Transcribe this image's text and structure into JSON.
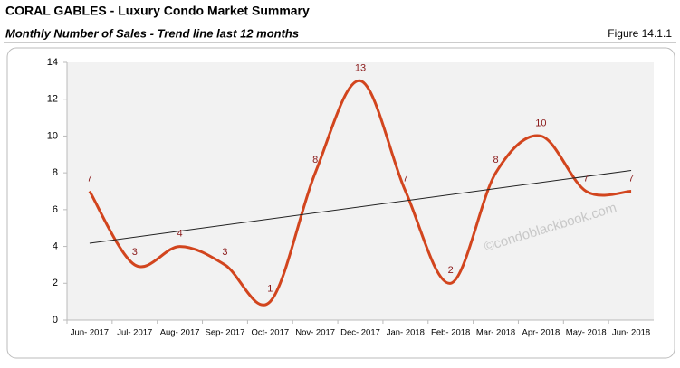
{
  "header": {
    "title": "CORAL GABLES - Luxury Condo Market Summary",
    "subtitle": "Monthly Number of Sales - Trend line last 12 months",
    "figure": "Figure 14.1.1"
  },
  "chart_data": {
    "type": "line",
    "categories": [
      "Jun- 2017",
      "Jul- 2017",
      "Aug- 2017",
      "Sep- 2017",
      "Oct- 2017",
      "Nov- 2017",
      "Dec- 2017",
      "Jan- 2018",
      "Feb- 2018",
      "Mar- 2018",
      "Apr- 2018",
      "May- 2018",
      "Jun- 2018"
    ],
    "series": [
      {
        "name": "Number of Sales",
        "color": "#d2451e",
        "values": [
          7,
          3,
          4,
          3,
          1,
          8,
          13,
          7,
          2,
          8,
          10,
          7,
          7
        ]
      }
    ],
    "ylim": [
      0,
      14
    ],
    "yticks": [
      0,
      2,
      4,
      6,
      8,
      10,
      12,
      14
    ],
    "trendline": true,
    "data_labels": true,
    "label_color": "#8b1a1a",
    "watermark": "©condoblackbook.com"
  }
}
